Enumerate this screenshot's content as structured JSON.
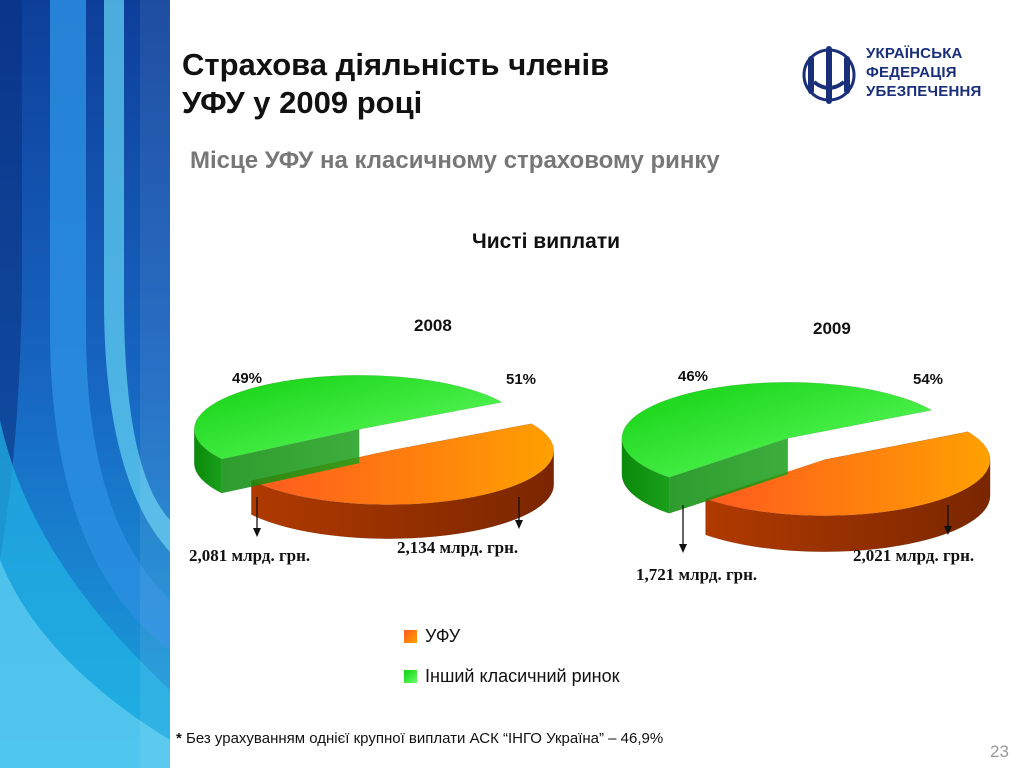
{
  "title": {
    "line1": "Страхова діяльність членів",
    "line2": "УФУ у 2009 році"
  },
  "subtitle": "Місце УФУ на класичному страховому ринку",
  "logo": {
    "line1": "УКРАЇНСЬКА",
    "line2": "ФЕДЕРАЦІЯ",
    "line3": "УБЕЗПЕЧЕННЯ"
  },
  "footnote": {
    "star": "*",
    "text": " Без урахуванням однієї крупної виплати АСК “ІНГО Україна” – 46,9%"
  },
  "page_number": "23",
  "colors": {
    "ufu": "#ff6a00",
    "other": "#22d622",
    "title_blue": "#1a2f7a",
    "sidebar": "#1a6fc4"
  },
  "chart_data": {
    "type": "pie",
    "title": "Чисті виплати",
    "legend": [
      "УФУ",
      "Інший класичний ринок"
    ],
    "charts": [
      {
        "year": "2008",
        "slices": [
          {
            "name": "УФУ",
            "percent": 49,
            "pct_label": "49%",
            "value_label": "2,081 млрд. грн."
          },
          {
            "name": "Інший класичний ринок",
            "percent": 51,
            "pct_label": "51%",
            "value_label": "2,134 млрд. грн."
          }
        ]
      },
      {
        "year": "2009",
        "slices": [
          {
            "name": "УФУ",
            "percent": 46,
            "pct_label": "46%",
            "value_label": "1,721 млрд. грн."
          },
          {
            "name": "Інший класичний ринок",
            "percent": 54,
            "pct_label": "54%",
            "value_label": "2,021 млрд. грн."
          }
        ]
      }
    ]
  }
}
